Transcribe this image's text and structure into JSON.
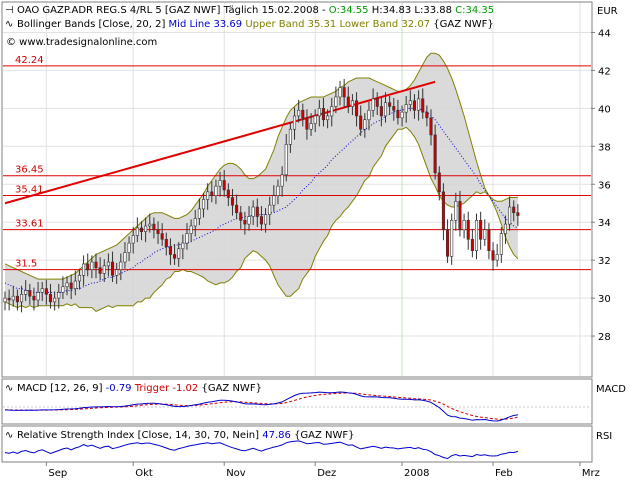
{
  "header": {
    "line1": {
      "prefix": "OAO GAZP.ADR REG.S 4/RL 5 [GAZ NWF] Täglich 15.02.2008 - ",
      "open": "O:34.55",
      "high": "H:34.83",
      "low": "L:33.88",
      "close": "C:34.35"
    },
    "line2": {
      "name": "Bollinger Bands [Close, 20, 2]",
      "mid": "Mid Line 33.69",
      "upper": "Upper Band 35.31",
      "lower": "Lower Band 32.07",
      "tag": "{GAZ NWF}"
    },
    "line3": "© www.tradesignalonline.com"
  },
  "currency": "EUR",
  "colors": {
    "candle_up": "#008000",
    "candle_down": "#cc0000",
    "band_fill": "#d4d4d4",
    "band_line": "#808000",
    "mid_line": "#0000cc",
    "level_line": "#e00000",
    "trend_line": "#e00000",
    "open_color": "#009900",
    "close_color": "#009900",
    "macd_color": "#0000cc",
    "trigger_color": "#cc0000",
    "rsi_color": "#0000cc"
  },
  "panels": {
    "macd": {
      "label": "MACD [12, 26, 9]",
      "value": "-0.79",
      "trigger": "Trigger -1.02",
      "tag": "{GAZ NWF}",
      "axis": "MACD"
    },
    "rsi": {
      "label": "Relative Strength Index [Close, 14, 30, 70, Nein]",
      "value": "47.86",
      "tag": "{GAZ NWF}",
      "axis": "RSI"
    }
  },
  "chart_data": {
    "type": "candlestick",
    "yticks": [
      28,
      30,
      32,
      34,
      36,
      38,
      40,
      42,
      44
    ],
    "ylim": [
      26,
      45.5
    ],
    "xlim": [
      0,
      125
    ],
    "month_ticks": [
      {
        "label": "Sep",
        "x": 10
      },
      {
        "label": "Okt",
        "x": 31
      },
      {
        "label": "Nov",
        "x": 53
      },
      {
        "label": "Dez",
        "x": 75
      },
      {
        "label": "2008",
        "x": 96
      },
      {
        "label": "Feb",
        "x": 118
      },
      {
        "label": "Mrz",
        "x": 139
      }
    ],
    "levels": [
      {
        "label": "42.24",
        "value": 42.24
      },
      {
        "label": "36.45",
        "value": 36.45
      },
      {
        "label": "35.41",
        "value": 35.41
      },
      {
        "label": "33.61",
        "value": 33.61
      },
      {
        "label": "31.5",
        "value": 31.5
      }
    ],
    "trendline": {
      "x0": 0,
      "y0": 35.0,
      "x1": 104,
      "y1": 41.4
    },
    "close": [
      30.0,
      29.9,
      30.1,
      29.8,
      30.2,
      30.4,
      30.1,
      29.9,
      30.3,
      30.5,
      30.2,
      29.8,
      30.0,
      30.3,
      30.6,
      30.8,
      30.5,
      30.9,
      31.2,
      31.8,
      31.5,
      31.9,
      31.6,
      31.3,
      31.7,
      31.9,
      31.2,
      31.5,
      31.9,
      32.4,
      32.9,
      33.3,
      33.7,
      33.5,
      33.8,
      33.9,
      33.6,
      33.4,
      33.1,
      32.7,
      32.3,
      32.1,
      32.6,
      32.9,
      33.4,
      33.8,
      34.2,
      34.7,
      35.2,
      35.6,
      35.4,
      35.9,
      36.2,
      35.7,
      35.3,
      34.9,
      34.5,
      34.1,
      33.9,
      34.3,
      34.8,
      34.3,
      33.9,
      34.4,
      34.9,
      35.4,
      35.9,
      36.5,
      38.1,
      38.9,
      39.6,
      39.9,
      39.5,
      38.9,
      39.2,
      39.6,
      40.0,
      39.4,
      39.6,
      40.1,
      40.6,
      41.1,
      40.6,
      40.1,
      40.4,
      39.6,
      38.9,
      39.4,
      39.9,
      40.5,
      40.1,
      39.6,
      40.3,
      40.1,
      39.9,
      39.5,
      39.8,
      40.2,
      40.4,
      39.9,
      40.5,
      39.8,
      39.5,
      38.6,
      36.6,
      35.6,
      33.6,
      32.2,
      34.1,
      35.1,
      33.6,
      34.1,
      33.1,
      32.5,
      34.1,
      33.1,
      33.6,
      32.5,
      32.0,
      32.3,
      33.4,
      33.9,
      34.8,
      34.5,
      34.35
    ],
    "mid_line": [
      30.8,
      30.7,
      30.6,
      30.5,
      30.5,
      30.4,
      30.4,
      30.3,
      30.3,
      30.3,
      30.3,
      30.3,
      30.3,
      30.3,
      30.3,
      30.4,
      30.4,
      30.5,
      30.5,
      30.6,
      30.7,
      30.8,
      30.8,
      30.9,
      31.0,
      31.1,
      31.1,
      31.2,
      31.3,
      31.4,
      31.5,
      31.6,
      31.8,
      31.9,
      32.1,
      32.2,
      32.4,
      32.5,
      32.6,
      32.7,
      32.7,
      32.8,
      32.8,
      32.9,
      32.9,
      33.0,
      33.1,
      33.2,
      33.3,
      33.4,
      33.5,
      33.6,
      33.8,
      33.9,
      34.0,
      34.1,
      34.2,
      34.2,
      34.3,
      34.3,
      34.4,
      34.4,
      34.4,
      34.4,
      34.5,
      34.5,
      34.6,
      34.7,
      34.8,
      35.0,
      35.2,
      35.4,
      35.7,
      35.9,
      36.1,
      36.4,
      36.6,
      36.8,
      37.0,
      37.3,
      37.5,
      37.7,
      37.9,
      38.1,
      38.3,
      38.5,
      38.7,
      38.9,
      39.0,
      39.2,
      39.3,
      39.4,
      39.6,
      39.7,
      39.8,
      39.9,
      39.9,
      40.0,
      40.0,
      40.0,
      40.0,
      39.9,
      39.8,
      39.6,
      39.4,
      39.1,
      38.8,
      38.5,
      38.2,
      37.9,
      37.6,
      37.3,
      37.0,
      36.7,
      36.4,
      36.0,
      35.7,
      35.4,
      35.1,
      34.8,
      34.5,
      34.2,
      34.0,
      33.8,
      33.69
    ],
    "upper_band": [
      31.8,
      31.7,
      31.6,
      31.5,
      31.4,
      31.3,
      31.2,
      31.1,
      31.0,
      31.0,
      31.0,
      31.0,
      31.0,
      31.0,
      31.0,
      31.1,
      31.2,
      31.3,
      31.5,
      31.7,
      31.9,
      32.1,
      32.3,
      32.4,
      32.5,
      32.6,
      32.7,
      32.8,
      33.0,
      33.2,
      33.4,
      33.6,
      33.8,
      34.0,
      34.2,
      34.4,
      34.5,
      34.5,
      34.5,
      34.4,
      34.3,
      34.2,
      34.2,
      34.3,
      34.4,
      34.6,
      34.9,
      35.2,
      35.5,
      35.9,
      36.2,
      36.5,
      36.8,
      37.0,
      37.1,
      37.1,
      37.0,
      36.8,
      36.5,
      36.3,
      36.3,
      36.4,
      36.6,
      36.8,
      37.3,
      37.8,
      38.5,
      39.0,
      39.5,
      39.9,
      40.1,
      40.3,
      40.4,
      40.5,
      40.6,
      40.6,
      40.6,
      40.6,
      40.7,
      40.8,
      40.9,
      41.1,
      41.2,
      41.4,
      41.5,
      41.6,
      41.6,
      41.6,
      41.6,
      41.5,
      41.4,
      41.3,
      41.2,
      41.1,
      41.0,
      40.9,
      40.9,
      41.0,
      41.2,
      41.5,
      41.9,
      42.3,
      42.7,
      42.9,
      42.9,
      42.8,
      42.5,
      42.1,
      41.6,
      41.0,
      40.3,
      39.6,
      38.8,
      38.0,
      37.2,
      36.5,
      35.8,
      35.4,
      35.2,
      35.1,
      35.1,
      35.2,
      35.3,
      35.3,
      35.31
    ],
    "lower_band": [
      29.8,
      29.7,
      29.6,
      29.5,
      29.6,
      29.5,
      29.6,
      29.5,
      29.6,
      29.6,
      29.6,
      29.6,
      29.6,
      29.6,
      29.6,
      29.7,
      29.6,
      29.7,
      29.5,
      29.5,
      29.5,
      29.5,
      29.3,
      29.4,
      29.5,
      29.6,
      29.5,
      29.6,
      29.6,
      29.6,
      29.6,
      29.6,
      29.8,
      29.8,
      30.0,
      30.0,
      30.3,
      30.5,
      30.7,
      31.0,
      31.1,
      31.4,
      31.4,
      31.5,
      31.4,
      31.4,
      31.3,
      31.2,
      31.1,
      30.9,
      30.8,
      30.7,
      30.8,
      30.8,
      30.9,
      31.1,
      31.4,
      31.6,
      32.1,
      32.3,
      32.5,
      32.4,
      32.2,
      32.0,
      31.7,
      31.2,
      30.7,
      30.4,
      30.1,
      30.1,
      30.3,
      30.5,
      31.0,
      31.3,
      31.6,
      32.2,
      32.6,
      33.0,
      33.3,
      33.8,
      34.1,
      34.3,
      34.6,
      34.8,
      35.1,
      35.4,
      35.8,
      36.2,
      36.4,
      36.9,
      37.2,
      37.5,
      38.0,
      38.3,
      38.6,
      38.9,
      38.9,
      39.0,
      38.8,
      38.5,
      38.1,
      37.5,
      36.9,
      36.3,
      35.9,
      35.4,
      35.1,
      34.9,
      34.8,
      34.8,
      34.9,
      35.0,
      35.2,
      35.4,
      35.6,
      35.5,
      35.6,
      35.4,
      35.0,
      34.5,
      33.9,
      33.2,
      32.7,
      32.3,
      32.07
    ],
    "macd": [
      -0.3,
      -0.32,
      -0.34,
      -0.35,
      -0.34,
      -0.33,
      -0.32,
      -0.33,
      -0.32,
      -0.3,
      -0.3,
      -0.3,
      -0.29,
      -0.27,
      -0.24,
      -0.21,
      -0.2,
      -0.17,
      -0.13,
      -0.06,
      -0.04,
      0.0,
      0.01,
      0.01,
      0.03,
      0.05,
      0.03,
      0.03,
      0.05,
      0.09,
      0.15,
      0.22,
      0.29,
      0.32,
      0.36,
      0.39,
      0.38,
      0.35,
      0.3,
      0.23,
      0.14,
      0.06,
      0.04,
      0.05,
      0.09,
      0.15,
      0.22,
      0.3,
      0.4,
      0.49,
      0.54,
      0.61,
      0.68,
      0.69,
      0.66,
      0.6,
      0.52,
      0.43,
      0.34,
      0.31,
      0.32,
      0.29,
      0.24,
      0.23,
      0.26,
      0.32,
      0.41,
      0.52,
      0.74,
      0.96,
      1.17,
      1.33,
      1.41,
      1.42,
      1.44,
      1.47,
      1.52,
      1.49,
      1.46,
      1.46,
      1.49,
      1.53,
      1.51,
      1.44,
      1.4,
      1.29,
      1.13,
      1.05,
      1.03,
      1.05,
      1.03,
      0.97,
      0.96,
      0.94,
      0.9,
      0.83,
      0.79,
      0.78,
      0.77,
      0.72,
      0.73,
      0.68,
      0.6,
      0.47,
      0.21,
      -0.06,
      -0.43,
      -0.84,
      -0.98,
      -1.0,
      -1.13,
      -1.17,
      -1.26,
      -1.36,
      -1.29,
      -1.3,
      -1.28,
      -1.35,
      -1.42,
      -1.43,
      -1.33,
      -1.19,
      -1.0,
      -0.87,
      -0.79
    ],
    "trigger": [
      -0.3,
      -0.3,
      -0.31,
      -0.32,
      -0.32,
      -0.32,
      -0.32,
      -0.32,
      -0.32,
      -0.32,
      -0.32,
      -0.31,
      -0.31,
      -0.3,
      -0.29,
      -0.28,
      -0.26,
      -0.25,
      -0.22,
      -0.19,
      -0.16,
      -0.13,
      -0.1,
      -0.08,
      -0.06,
      -0.04,
      -0.02,
      -0.01,
      0.0,
      0.02,
      0.05,
      0.08,
      0.13,
      0.17,
      0.21,
      0.24,
      0.27,
      0.29,
      0.29,
      0.28,
      0.25,
      0.21,
      0.18,
      0.15,
      0.14,
      0.14,
      0.16,
      0.19,
      0.23,
      0.28,
      0.33,
      0.39,
      0.44,
      0.49,
      0.52,
      0.54,
      0.54,
      0.52,
      0.49,
      0.45,
      0.43,
      0.4,
      0.37,
      0.34,
      0.32,
      0.32,
      0.34,
      0.37,
      0.45,
      0.55,
      0.67,
      0.8,
      0.92,
      1.01,
      1.1,
      1.17,
      1.24,
      1.29,
      1.32,
      1.35,
      1.38,
      1.41,
      1.43,
      1.43,
      1.42,
      1.39,
      1.34,
      1.28,
      1.23,
      1.2,
      1.16,
      1.12,
      1.09,
      1.06,
      1.03,
      0.99,
      0.95,
      0.92,
      0.89,
      0.85,
      0.83,
      0.8,
      0.76,
      0.7,
      0.6,
      0.47,
      0.29,
      0.06,
      -0.15,
      -0.32,
      -0.48,
      -0.62,
      -0.75,
      -0.87,
      -0.96,
      -1.03,
      -1.08,
      -1.14,
      -1.2,
      -1.24,
      -1.26,
      -1.24,
      -1.19,
      -1.13,
      -1.02
    ],
    "rsi": [
      44.0,
      42.0,
      46.0,
      41.0,
      48.0,
      51.0,
      46.0,
      43.0,
      50.0,
      53.0,
      47.0,
      41.0,
      46.0,
      51.0,
      56.0,
      59.0,
      53.0,
      59.0,
      63.0,
      70.0,
      65.0,
      68.0,
      63.0,
      58.0,
      63.0,
      65.0,
      57.0,
      60.0,
      64.0,
      68.0,
      72.0,
      74.0,
      76.0,
      73.0,
      75.0,
      75.0,
      71.0,
      68.0,
      64.0,
      59.0,
      54.0,
      52.0,
      57.0,
      60.0,
      64.0,
      67.0,
      69.0,
      72.0,
      74.0,
      76.0,
      73.0,
      75.0,
      76.0,
      70.0,
      65.0,
      60.0,
      56.0,
      52.0,
      50.0,
      54.0,
      58.0,
      53.0,
      49.0,
      54.0,
      58.0,
      62.0,
      65.0,
      69.0,
      76.0,
      79.0,
      81.0,
      82.0,
      78.0,
      73.0,
      74.0,
      76.0,
      77.0,
      71.0,
      72.0,
      74.0,
      76.0,
      78.0,
      73.0,
      68.0,
      69.0,
      62.0,
      56.0,
      59.0,
      62.0,
      65.0,
      62.0,
      58.0,
      62.0,
      60.0,
      59.0,
      56.0,
      58.0,
      60.0,
      61.0,
      57.0,
      60.0,
      55.0,
      53.0,
      47.0,
      38.0,
      34.0,
      28.0,
      25.0,
      34.0,
      38.0,
      33.0,
      35.0,
      33.0,
      31.0,
      38.0,
      35.0,
      37.0,
      34.0,
      33.0,
      34.0,
      39.0,
      41.0,
      45.0,
      44.0,
      47.86
    ]
  }
}
